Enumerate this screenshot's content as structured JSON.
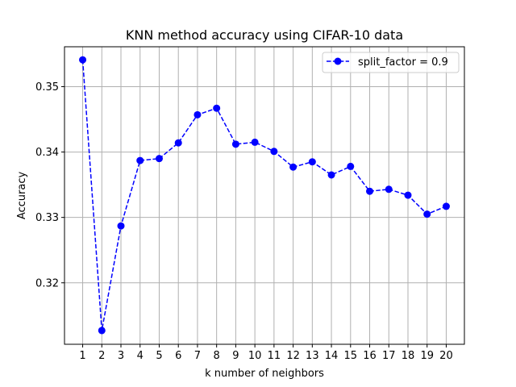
{
  "chart_data": {
    "type": "line",
    "title": "KNN method accuracy using CIFAR-10 data",
    "xlabel": "k number of neighbors",
    "ylabel": "Accuracy",
    "x": [
      1,
      2,
      3,
      4,
      5,
      6,
      7,
      8,
      9,
      10,
      11,
      12,
      13,
      14,
      15,
      16,
      17,
      18,
      19,
      20
    ],
    "series": [
      {
        "name": "split_factor = 0.9",
        "values": [
          0.3541,
          0.3127,
          0.3287,
          0.3387,
          0.339,
          0.3414,
          0.3457,
          0.3467,
          0.3412,
          0.3415,
          0.3401,
          0.3377,
          0.3385,
          0.3365,
          0.3378,
          0.334,
          0.3343,
          0.3334,
          0.3305,
          0.3317
        ],
        "color": "#0000ff",
        "line_style": "dashed",
        "marker": "circle"
      }
    ],
    "xticks": [
      "1",
      "2",
      "3",
      "4",
      "5",
      "6",
      "7",
      "8",
      "9",
      "10",
      "11",
      "12",
      "13",
      "14",
      "15",
      "16",
      "17",
      "18",
      "19",
      "20"
    ],
    "yticks": [
      "0.32",
      "0.33",
      "0.34",
      "0.35"
    ],
    "xlim": [
      0.05,
      20.95
    ],
    "ylim": [
      0.3106,
      0.3561
    ],
    "grid": true,
    "legend_position": "top-right"
  }
}
